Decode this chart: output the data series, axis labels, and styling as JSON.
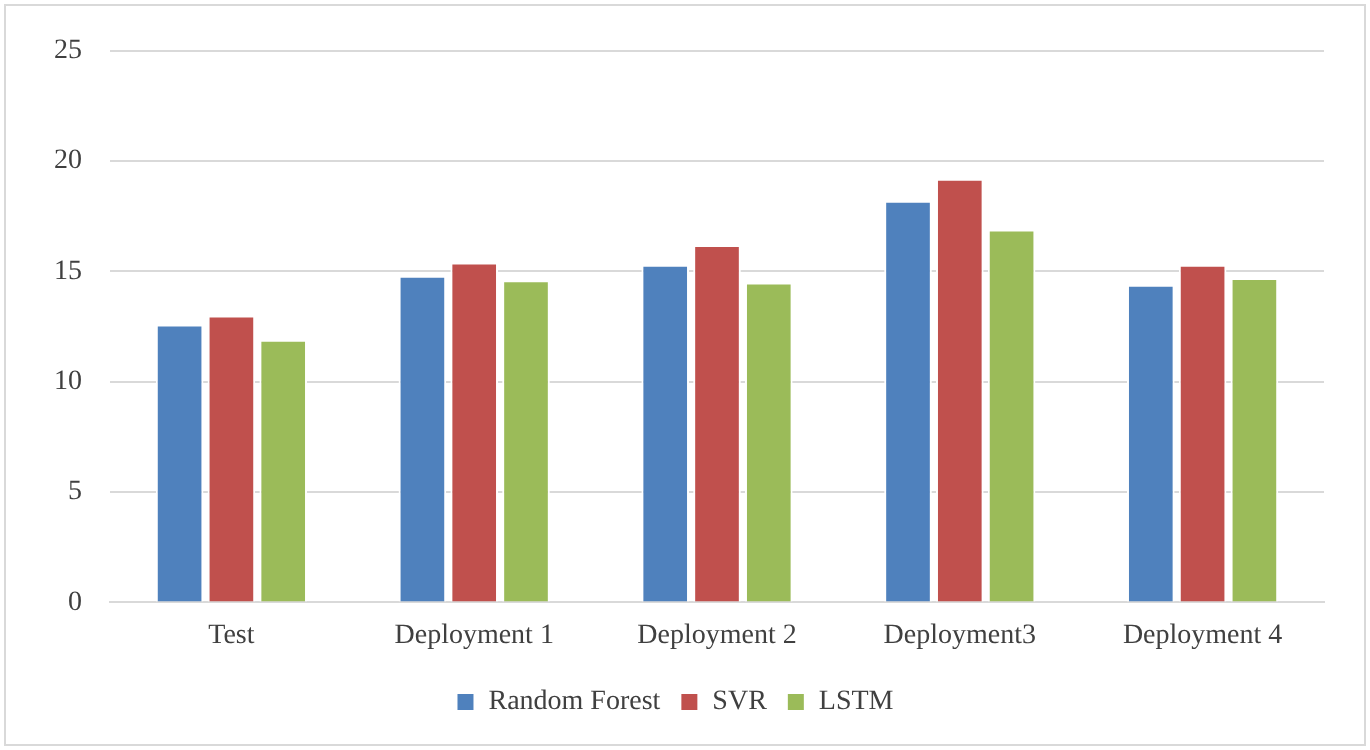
{
  "chart_data": {
    "type": "bar",
    "categories": [
      "Test",
      "Deployment 1",
      "Deployment 2",
      "Deployment3",
      "Deployment 4"
    ],
    "series": [
      {
        "name": "Random Forest",
        "color": "#4f81bd",
        "values": [
          12.6,
          14.8,
          15.3,
          18.2,
          14.4
        ]
      },
      {
        "name": "SVR",
        "color": "#c0504d",
        "values": [
          13.0,
          15.4,
          16.2,
          19.2,
          15.3
        ]
      },
      {
        "name": "LSTM",
        "color": "#9bbb59",
        "values": [
          11.9,
          14.6,
          14.5,
          16.9,
          14.7
        ]
      }
    ],
    "ylim": [
      0,
      25
    ],
    "yticks": [
      0,
      5,
      10,
      15,
      20,
      25
    ],
    "grid": "y",
    "legend": "bottom"
  }
}
